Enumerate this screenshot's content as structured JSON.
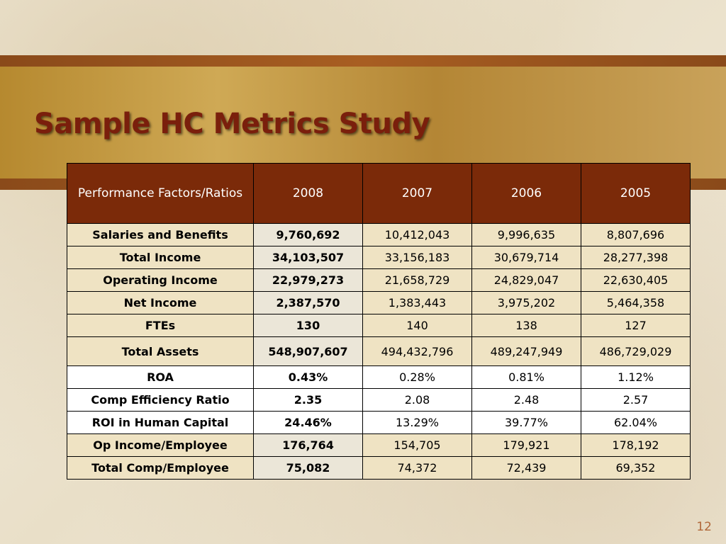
{
  "slide": {
    "title": "Sample HC Metrics Study",
    "page_number": "12"
  },
  "table": {
    "header": [
      "Performance Factors/Ratios",
      "2008",
      "2007",
      "2006",
      "2005"
    ],
    "rows": [
      {
        "label": "Salaries and Benefits",
        "values": [
          "9,760,692",
          "10,412,043",
          "9,996,635",
          "8,807,696"
        ]
      },
      {
        "label": "Total Income",
        "values": [
          "34,103,507",
          "33,156,183",
          "30,679,714",
          "28,277,398"
        ]
      },
      {
        "label": "Operating Income",
        "values": [
          "22,979,273",
          "21,658,729",
          "24,829,047",
          "22,630,405"
        ]
      },
      {
        "label": "Net Income",
        "values": [
          "2,387,570",
          "1,383,443",
          "3,975,202",
          "5,464,358"
        ]
      },
      {
        "label": "FTEs",
        "values": [
          "130",
          "140",
          "138",
          "127"
        ]
      },
      {
        "label": "Total Assets",
        "values": [
          "548,907,607",
          "494,432,796",
          "489,247,949",
          "486,729,029"
        ]
      },
      {
        "label": "ROA",
        "values": [
          "0.43%",
          "0.28%",
          "0.81%",
          "1.12%"
        ]
      },
      {
        "label": "Comp Efficiency Ratio",
        "values": [
          "2.35",
          "2.08",
          "2.48",
          "2.57"
        ]
      },
      {
        "label": "ROI in Human Capital",
        "values": [
          "24.46%",
          "13.29%",
          "39.77%",
          "62.04%"
        ]
      },
      {
        "label": "Op Income/Employee",
        "values": [
          "176,764",
          "154,705",
          "179,921",
          "178,192"
        ]
      },
      {
        "label": "Total Comp/Employee",
        "values": [
          "75,082",
          "74,372",
          "72,439",
          "69,352"
        ]
      }
    ]
  },
  "colors": {
    "title": "#7a1f0c",
    "header_bg": "#7b2a09",
    "tan_row": "#efe3c3",
    "white_row": "#ffffff"
  }
}
